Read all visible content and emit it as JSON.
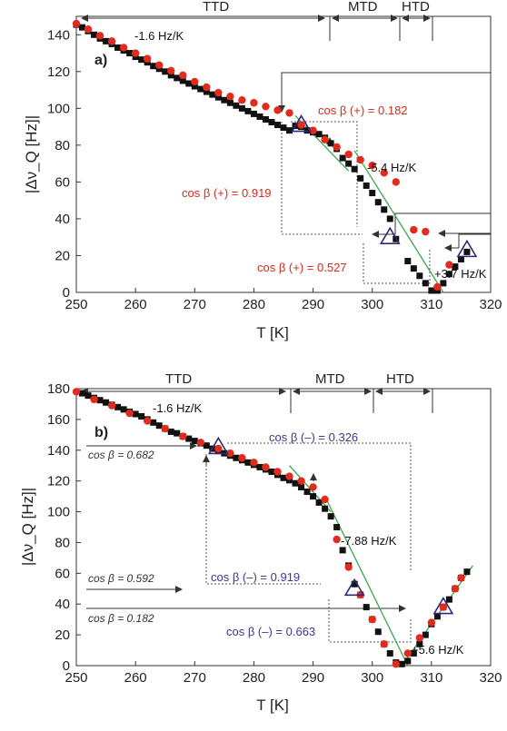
{
  "colors": {
    "series_red": "#e02b1d",
    "series_black": "#111111",
    "triangle": "#2d2a7a",
    "fit_line": "#3aa64a",
    "red_text": "#d62a1e",
    "blue_text": "#3a3a8c"
  },
  "chart_data": [
    {
      "type": "scatter",
      "panel_label": "a)",
      "xlabel": "T [K]",
      "ylabel": "|Δν_Q [Hz]|",
      "xlim": [
        250,
        320
      ],
      "ylim": [
        0,
        150
      ],
      "xticks": [
        250,
        260,
        270,
        280,
        290,
        300,
        310,
        320
      ],
      "yticks": [
        0,
        20,
        40,
        60,
        80,
        100,
        120,
        140
      ],
      "regions": [
        {
          "label": "TTD",
          "x": [
            250,
            297
          ]
        },
        {
          "label": "MTD",
          "x": [
            297,
            310
          ]
        },
        {
          "label": "HTD",
          "x": [
            310,
            316
          ]
        }
      ],
      "series": [
        {
          "marker": "square",
          "x": [
            250,
            251,
            252,
            253,
            254,
            255,
            256,
            257,
            258,
            259,
            260,
            261,
            262,
            263,
            264,
            265,
            266,
            267,
            268,
            269,
            270,
            271,
            272,
            273,
            274,
            275,
            276,
            277,
            278,
            279,
            280,
            281,
            282,
            283,
            284,
            285,
            286,
            287,
            288,
            289,
            290,
            291,
            292,
            293,
            294,
            295,
            296,
            297,
            298,
            299,
            300,
            301,
            302,
            303,
            304,
            306,
            307,
            308,
            309,
            310,
            311,
            312,
            313,
            314,
            315,
            316
          ],
          "y": [
            145.5,
            144,
            142,
            140,
            138,
            136.5,
            135,
            133,
            131.5,
            130,
            128,
            126.5,
            125,
            123,
            121.5,
            120,
            118,
            116.5,
            115,
            113.5,
            112,
            110.5,
            109,
            107.5,
            106,
            104.5,
            103,
            101.5,
            100,
            98.5,
            97,
            95.5,
            94,
            92.5,
            91,
            89.5,
            88,
            90.5,
            90,
            88,
            87,
            86,
            84,
            81,
            78,
            73,
            70,
            67,
            62,
            58,
            54,
            49,
            45,
            40,
            29,
            17,
            13,
            9,
            5,
            1,
            1,
            5,
            10,
            14,
            18,
            22
          ]
        },
        {
          "marker": "circle",
          "x": [
            250,
            252,
            254,
            256,
            258,
            260,
            262,
            264,
            266,
            268,
            270,
            272,
            274,
            276,
            278,
            280,
            282,
            284,
            286,
            288,
            290,
            292,
            294,
            296,
            298,
            300,
            302,
            304,
            307,
            309,
            311,
            313
          ],
          "y": [
            146,
            143,
            139.5,
            136.5,
            133,
            130,
            127,
            123.5,
            120.5,
            118,
            114.5,
            111.5,
            108.5,
            106.5,
            104.5,
            103,
            101,
            99,
            97.5,
            91,
            88,
            83,
            79,
            75,
            72,
            69,
            65,
            60,
            34,
            33,
            3,
            15
          ]
        },
        {
          "marker": "triangle",
          "x": [
            288,
            303,
            316
          ],
          "y": [
            91,
            30,
            23
          ]
        }
      ],
      "fit_lines": [
        {
          "x": [
            297,
            312
          ],
          "y": [
            77,
            0
          ]
        }
      ],
      "slope_labels": [
        "-1.6 Hz/K",
        "-5.4 Hz/K",
        "+3.7 Hz/K"
      ],
      "annotations": [
        "cos β (+) = 0.182",
        "cos β (+) = 0.919",
        "cos β (+) = 0.527"
      ]
    },
    {
      "type": "scatter",
      "panel_label": "b)",
      "xlabel": "T [K]",
      "ylabel": "|Δν_Q [Hz]|",
      "xlim": [
        250,
        320
      ],
      "ylim": [
        0,
        180
      ],
      "xticks": [
        250,
        260,
        270,
        280,
        290,
        300,
        310,
        320
      ],
      "yticks": [
        0,
        20,
        40,
        60,
        80,
        100,
        120,
        140,
        160,
        180
      ],
      "regions": [
        {
          "label": "TTD",
          "x": [
            250,
            290
          ]
        },
        {
          "label": "MTD",
          "x": [
            290,
            305
          ]
        },
        {
          "label": "HTD",
          "x": [
            305,
            316
          ]
        }
      ],
      "series": [
        {
          "marker": "square",
          "x": [
            251,
            252,
            253,
            254,
            255,
            256,
            257,
            258,
            259,
            260,
            261,
            262,
            263,
            264,
            265,
            266,
            267,
            268,
            269,
            270,
            271,
            272,
            273,
            274,
            275,
            276,
            277,
            278,
            279,
            280,
            281,
            282,
            283,
            284,
            285,
            286,
            287,
            288,
            289,
            290,
            291,
            292,
            293,
            294,
            295,
            296,
            297,
            298,
            299,
            300,
            301,
            302,
            303,
            304,
            305,
            306,
            307,
            308,
            309,
            310,
            311,
            312,
            313,
            314,
            315,
            316
          ],
          "y": [
            177,
            175.5,
            174,
            172.5,
            171,
            169.5,
            168,
            166.5,
            165,
            163.5,
            162,
            160,
            158,
            156,
            154,
            152,
            151,
            149,
            147.5,
            146,
            144.5,
            143,
            141,
            139.5,
            138,
            136.5,
            135,
            133.5,
            132,
            130.5,
            129,
            127.5,
            126,
            124,
            122,
            120.5,
            118.5,
            116,
            113,
            110,
            106,
            102,
            97,
            90,
            75,
            65,
            53,
            46,
            38,
            30,
            22,
            14,
            8,
            2,
            1,
            3,
            8,
            14,
            20,
            27,
            32,
            38,
            43,
            50,
            57,
            61
          ]
        },
        {
          "marker": "circle",
          "x": [
            250,
            253,
            256,
            259,
            262,
            265,
            268,
            271,
            274,
            276,
            278,
            280,
            282,
            284,
            286,
            288,
            290,
            292,
            294,
            296,
            298,
            300,
            302,
            304,
            306,
            308,
            310,
            312,
            314,
            315
          ],
          "y": [
            178,
            173,
            169,
            164,
            159,
            154,
            149,
            145,
            141,
            138,
            135,
            132,
            129,
            126,
            123,
            120,
            116,
            108,
            82,
            64,
            46,
            30,
            14,
            1,
            8,
            18,
            28,
            38,
            50,
            57
          ]
        },
        {
          "marker": "triangle",
          "x": [
            274,
            297,
            312
          ],
          "y": [
            142,
            50,
            38
          ]
        }
      ],
      "fit_lines": [
        {
          "x": [
            292,
            306
          ],
          "y": [
            110,
            0
          ]
        },
        {
          "x": [
            305,
            317
          ],
          "y": [
            0,
            65
          ]
        }
      ],
      "slope_labels": [
        "-1.6 Hz/K",
        "-7.88 Hz/K",
        "+5.6 Hz/K"
      ],
      "annotations": [
        "cos β (–) = 0.326",
        "cos β (–) = 0.919",
        "cos β (–) = 0.663"
      ],
      "side_annotations": [
        "cos β = 0.682",
        "cos β = 0.592",
        "cos β = 0.182"
      ]
    }
  ]
}
